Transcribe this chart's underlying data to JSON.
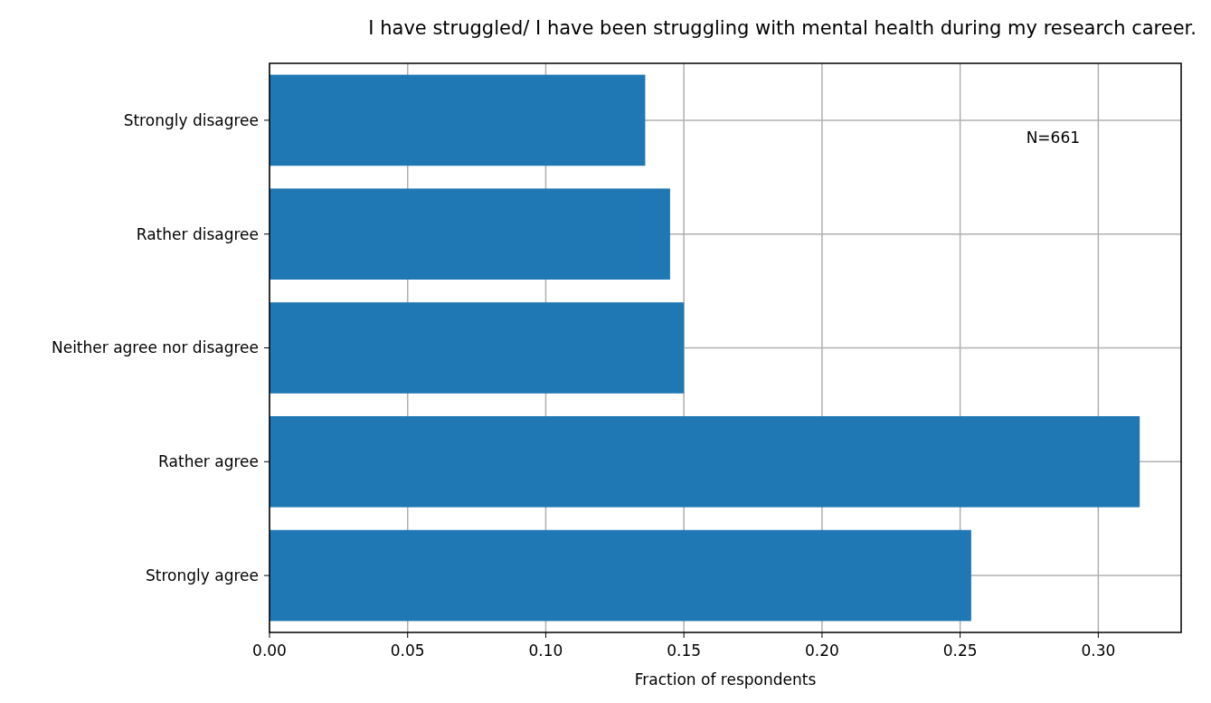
{
  "chart_data": {
    "type": "bar",
    "orientation": "horizontal",
    "title": "I have struggled/ I have been struggling with mental health during my research career.",
    "xlabel": "Fraction of respondents",
    "categories": [
      "Strongly disagree",
      "Rather disagree",
      "Neither agree nor disagree",
      "Rather agree",
      "Strongly agree"
    ],
    "values": [
      0.136,
      0.145,
      0.15,
      0.315,
      0.254
    ],
    "color": "#1f77b4",
    "xlim": [
      0,
      0.33
    ],
    "xticks": [
      {
        "value": 0,
        "label": "0.00"
      },
      {
        "value": 0.05,
        "label": "0.05"
      },
      {
        "value": 0.1,
        "label": "0.10"
      },
      {
        "value": 0.15,
        "label": "0.15"
      },
      {
        "value": 0.2,
        "label": "0.20"
      },
      {
        "value": 0.25,
        "label": "0.25"
      },
      {
        "value": 0.3,
        "label": "0.30"
      }
    ],
    "grid": true,
    "annotations": [
      "N=661"
    ]
  }
}
